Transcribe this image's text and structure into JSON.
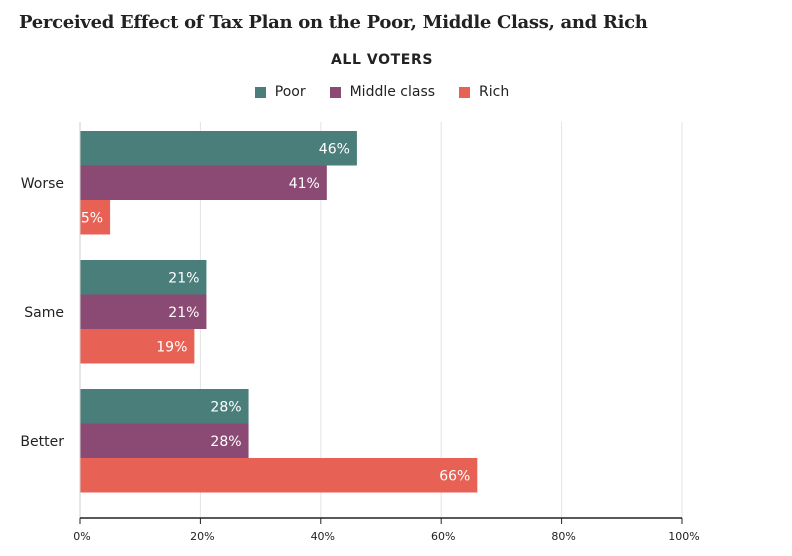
{
  "chart_data": {
    "type": "bar",
    "orientation": "horizontal",
    "title": "Perceived Effect of Tax Plan on the Poor, Middle Class, and Rich",
    "subtitle": "ALL VOTERS",
    "categories": [
      "Worse",
      "Same",
      "Better"
    ],
    "series": [
      {
        "name": "Poor",
        "color": "#4a7e7a",
        "values": [
          46,
          21,
          28
        ],
        "labels": [
          "46%",
          "21%",
          "28%"
        ]
      },
      {
        "name": "Middle class",
        "color": "#8a4a73",
        "values": [
          41,
          21,
          28
        ],
        "labels": [
          "41%",
          "21%",
          "28%"
        ]
      },
      {
        "name": "Rich",
        "color": "#e86155",
        "values": [
          5,
          19,
          66
        ],
        "labels": [
          "5%",
          "19%",
          "66%"
        ]
      }
    ],
    "xlim": [
      0,
      100
    ],
    "xticks": [
      0,
      20,
      40,
      60,
      80,
      100
    ],
    "xtick_labels": [
      "0%",
      "20%",
      "40%",
      "60%",
      "80%",
      "100%"
    ],
    "grid": true,
    "legend_position": "top-center"
  }
}
